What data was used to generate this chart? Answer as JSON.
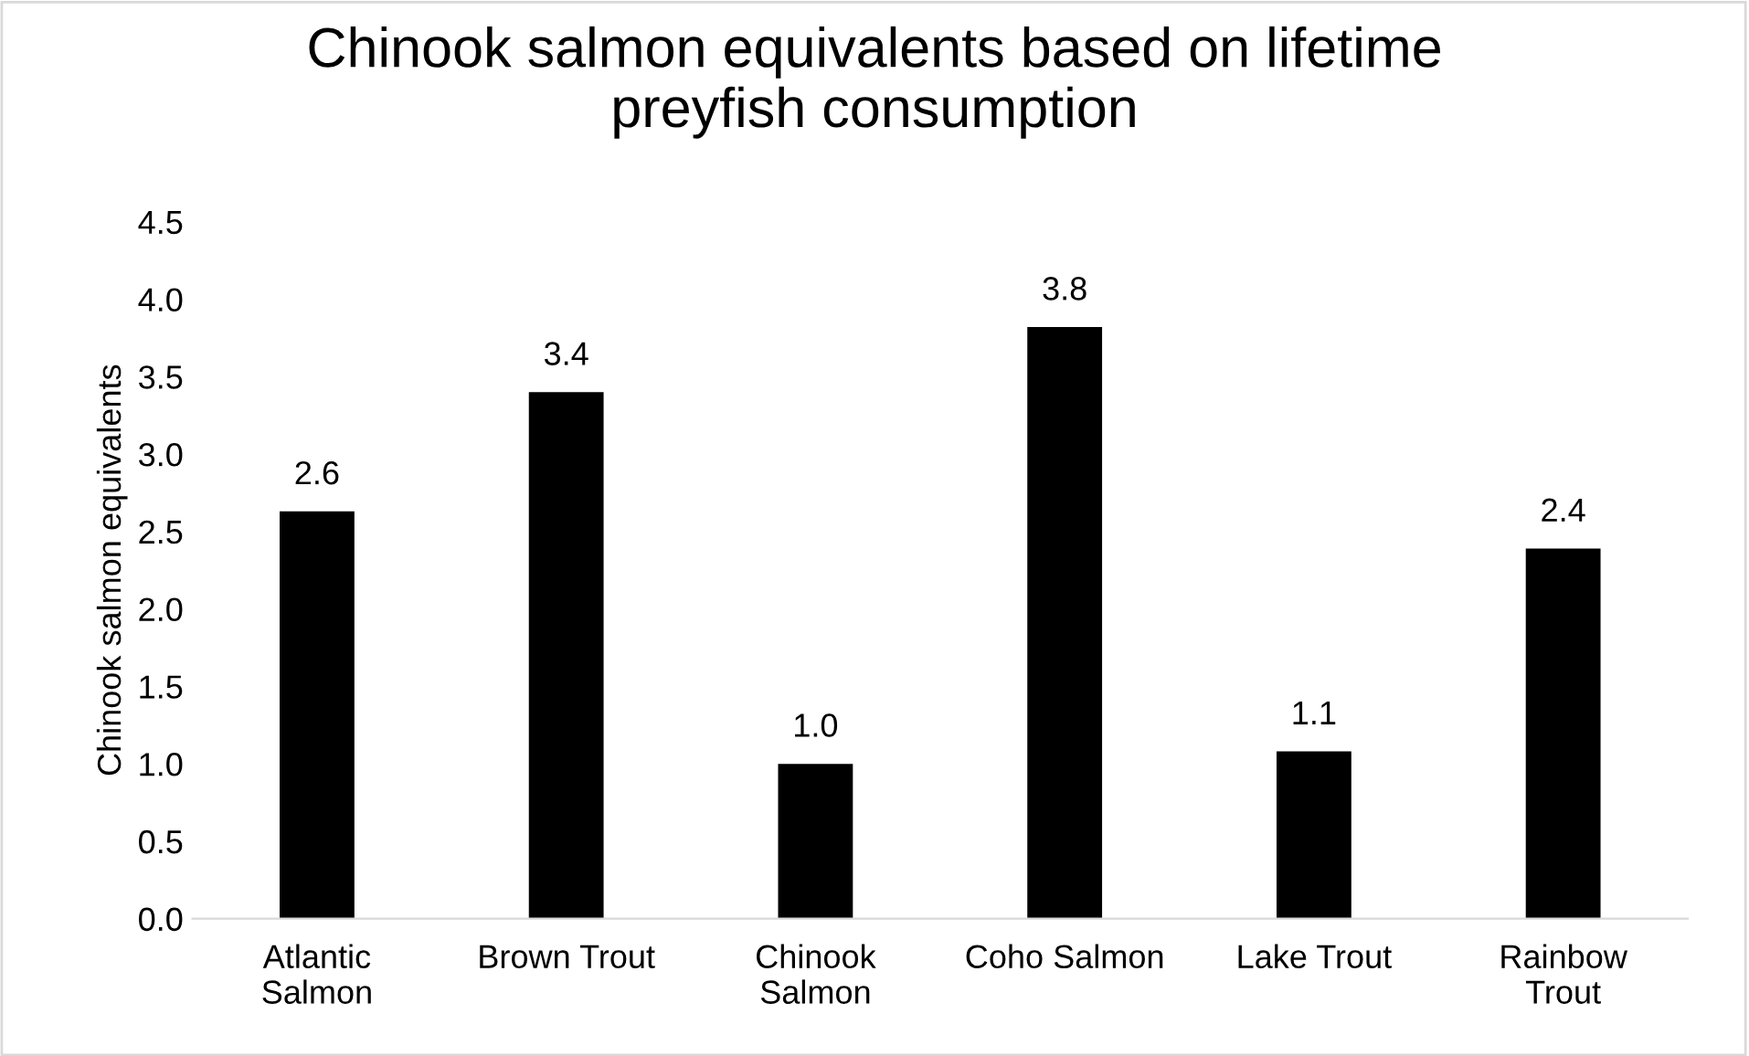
{
  "chart_data": {
    "type": "bar",
    "title": "Chinook salmon equivalents based on lifetime preyfish consumption",
    "ylabel": "Chinook salmon equivalents",
    "categories": [
      "Atlantic\nSalmon",
      "Brown Trout",
      "Chinook\nSalmon",
      "Coho Salmon",
      "Lake Trout",
      "Rainbow\nTrout"
    ],
    "values": [
      2.63,
      3.4,
      1.0,
      3.82,
      1.08,
      2.39
    ],
    "value_labels": [
      "2.6",
      "3.4",
      "1.0",
      "3.8",
      "1.1",
      "2.4"
    ],
    "color": "#000000",
    "ylim": [
      0,
      4.5
    ],
    "yticks": [
      {
        "value": 0,
        "label": "0.0"
      },
      {
        "value": 0.5,
        "label": "0.5"
      },
      {
        "value": 1,
        "label": "1.0"
      },
      {
        "value": 1.5,
        "label": "1.5"
      },
      {
        "value": 2,
        "label": "2.0"
      },
      {
        "value": 2.5,
        "label": "2.5"
      },
      {
        "value": 3,
        "label": "3.0"
      },
      {
        "value": 3.5,
        "label": "3.5"
      },
      {
        "value": 4,
        "label": "4.0"
      },
      {
        "value": 4.5,
        "label": "4.5"
      }
    ],
    "grid": false
  }
}
